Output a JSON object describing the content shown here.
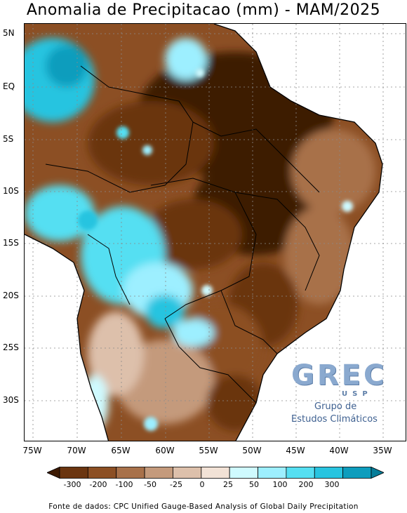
{
  "title": "Anomalia de Precipitacao (mm) - MAM/2025",
  "lat_labels": [
    "5N",
    "EQ",
    "5S",
    "10S",
    "15S",
    "20S",
    "25S",
    "30S"
  ],
  "lon_labels": [
    "75W",
    "70W",
    "65W",
    "60W",
    "55W",
    "50W",
    "45W",
    "40W",
    "35W"
  ],
  "colorbar": {
    "colors": [
      "#3d1a03",
      "#6b3510",
      "#8c4f24",
      "#a8714a",
      "#c49a7c",
      "#ddc0ab",
      "#f2e2d6",
      "#cffaff",
      "#9defff",
      "#55dff2",
      "#28c4e0",
      "#0d9dbd",
      "#067d99"
    ],
    "labels": [
      "-300",
      "-200",
      "-100",
      "-50",
      "-25",
      "0",
      "25",
      "50",
      "100",
      "200",
      "300"
    ]
  },
  "logo": {
    "letters": "GREC",
    "sub": "USP",
    "line1": "Grupo de",
    "line2": "Estudos Climáticos"
  },
  "source": "Fonte de dados: CPC Unified Gauge-Based Analysis of Global Daily Precipitation"
}
